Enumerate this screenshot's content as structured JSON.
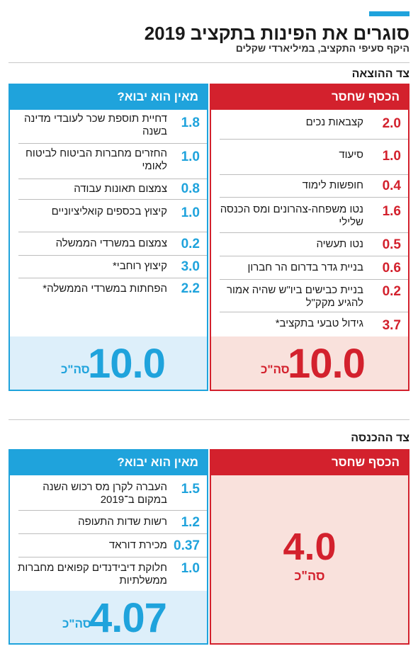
{
  "title": "סוגרים את הפינות בתקציב 2019",
  "subtitle": "היקף סעיפי התקציב, במיליארדי שקלים",
  "expense": {
    "label": "צד ההוצאה",
    "missing_header": "הכסף שחסר",
    "source_header": "מאין הוא יבוא?",
    "missing_items": [
      {
        "label": "קצבאות נכים",
        "value": "2.0"
      },
      {
        "label": "סיעוד",
        "value": "1.0"
      },
      {
        "label": "חופשות לימוד",
        "value": "0.4"
      },
      {
        "label": "נטו משפחה-צהרונים ומס הכנסה שלילי",
        "value": "1.6"
      },
      {
        "label": "נטו תעשיה",
        "value": "0.5"
      },
      {
        "label": "בניית גדר בדרום הר חברון",
        "value": "0.6"
      },
      {
        "label": "בניית כבישים ביו\"ש שהיה אמור להגיע מקק\"ל",
        "value": "0.2"
      },
      {
        "label": "גידול טבעי בתקציב*",
        "value": "3.7"
      }
    ],
    "source_items": [
      {
        "label": "דחיית תוספת שכר לעובדי מדינה בשנה",
        "value": "1.8"
      },
      {
        "label": "החזרים מחברות הביטוח לביטוח לאומי",
        "value": "1.0"
      },
      {
        "label": "צמצום תאונות עבודה",
        "value": "0.8"
      },
      {
        "label": "קיצוץ בכספים קואליציוניים",
        "value": "1.0"
      },
      {
        "label": "צמצום במשרדי הממשלה",
        "value": "0.2"
      },
      {
        "label": "קיצוץ רוחבי*",
        "value": "3.0"
      },
      {
        "label": "הפחתות במשרדי הממשלה*",
        "value": "2.2"
      }
    ],
    "missing_total": "10.0",
    "source_total": "10.0",
    "total_unit": "סה\"כ"
  },
  "income": {
    "label": "צד ההכנסה",
    "missing_header": "הכסף שחסר",
    "source_header": "מאין הוא יבוא?",
    "missing_total": "4.0",
    "source_items": [
      {
        "label": "העברה לקרן מס רכוש השנה במקום ב־2019",
        "value": "1.5"
      },
      {
        "label": "רשות שדות התעופה",
        "value": "1.2"
      },
      {
        "label": "מכירת דוראד",
        "value": "0.37"
      },
      {
        "label": "חלוקת דיבידנדים קפואים מחברות ממשלתיות",
        "value": "1.0"
      }
    ],
    "source_total": "4.07",
    "total_unit": "סה\"כ"
  },
  "colors": {
    "red": "#d3212d",
    "blue": "#1fa3dc",
    "red_light": "#f9e1dc",
    "blue_light": "#ddeffa"
  },
  "chart_data": {
    "type": "table",
    "title": "סוגרים את הפינות בתקציב 2019",
    "subtitle": "היקף סעיפי התקציב, במיליארדי שקלים",
    "tables": [
      {
        "name": "צד ההוצאה",
        "columns": [
          "הכסף שחסר",
          "מאין הוא יבוא?"
        ],
        "missing": [
          [
            "קצבאות נכים",
            2.0
          ],
          [
            "סיעוד",
            1.0
          ],
          [
            "חופשות לימוד",
            0.4
          ],
          [
            "נטו משפחה-צהרונים ומס הכנסה שלילי",
            1.6
          ],
          [
            "נטו תעשיה",
            0.5
          ],
          [
            "בניית גדר בדרום הר חברון",
            0.6
          ],
          [
            "בניית כבישים ביו\"ש שהיה אמור להגיע מקק\"ל",
            0.2
          ],
          [
            "גידול טבעי בתקציב*",
            3.7
          ]
        ],
        "sources": [
          [
            "דחיית תוספת שכר לעובדי מדינה בשנה",
            1.8
          ],
          [
            "החזרים מחברות הביטוח לביטוח לאומי",
            1.0
          ],
          [
            "צמצום תאונות עבודה",
            0.8
          ],
          [
            "קיצוץ בכספים קואליציוניים",
            1.0
          ],
          [
            "צמצום במשרדי הממשלה",
            0.2
          ],
          [
            "קיצוץ רוחבי*",
            3.0
          ],
          [
            "הפחתות במשרדי הממשלה*",
            2.2
          ]
        ],
        "totals": [
          10.0,
          10.0
        ]
      },
      {
        "name": "צד ההכנסה",
        "columns": [
          "הכסף שחסר",
          "מאין הוא יבוא?"
        ],
        "missing": [],
        "sources": [
          [
            "העברה לקרן מס רכוש השנה במקום ב־2019",
            1.5
          ],
          [
            "רשות שדות התעופה",
            1.2
          ],
          [
            "מכירת דוראד",
            0.37
          ],
          [
            "חלוקת דיבידנדים קפואים מחברות ממשלתיות",
            1.0
          ]
        ],
        "totals": [
          4.0,
          4.07
        ]
      }
    ]
  }
}
